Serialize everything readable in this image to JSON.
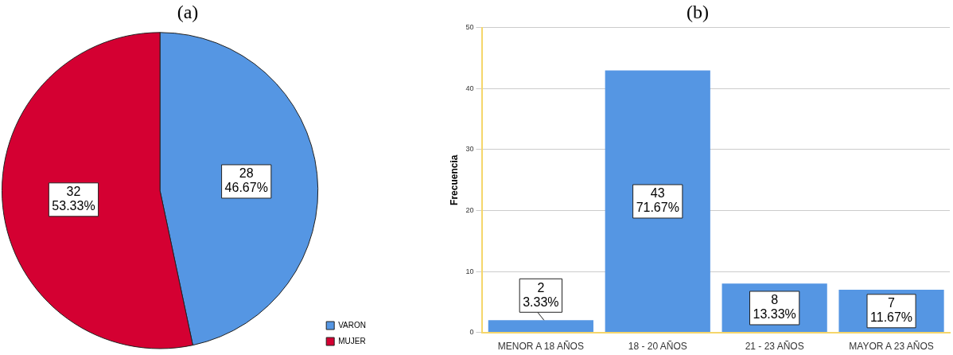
{
  "chart_data": [
    {
      "type": "pie",
      "title": "(a)",
      "categories": [
        "VARON",
        "MUJER"
      ],
      "values": [
        28,
        32
      ],
      "colors": [
        "#5596e3",
        "#d40032"
      ],
      "value_labels": [
        "28\n46.67%",
        "32\n53.33%"
      ],
      "legend": "bottom right"
    },
    {
      "type": "bar",
      "title": "(b)",
      "ylabel": "Frecuencia",
      "categories": [
        "MENOR A 18 AÑOS",
        "18 - 20 AÑOS",
        "21 - 23 AÑOS",
        "MAYOR A 23 AÑOS"
      ],
      "values": [
        2,
        43,
        8,
        7
      ],
      "color": "#5596e3",
      "value_labels": [
        "2\n3.33%",
        "43\n71.67%",
        "8\n13.33%",
        "7\n11.67%"
      ],
      "ylim": [
        0,
        50
      ],
      "yticks": [
        0,
        10,
        20,
        30,
        40,
        50
      ],
      "grid": "y"
    }
  ]
}
